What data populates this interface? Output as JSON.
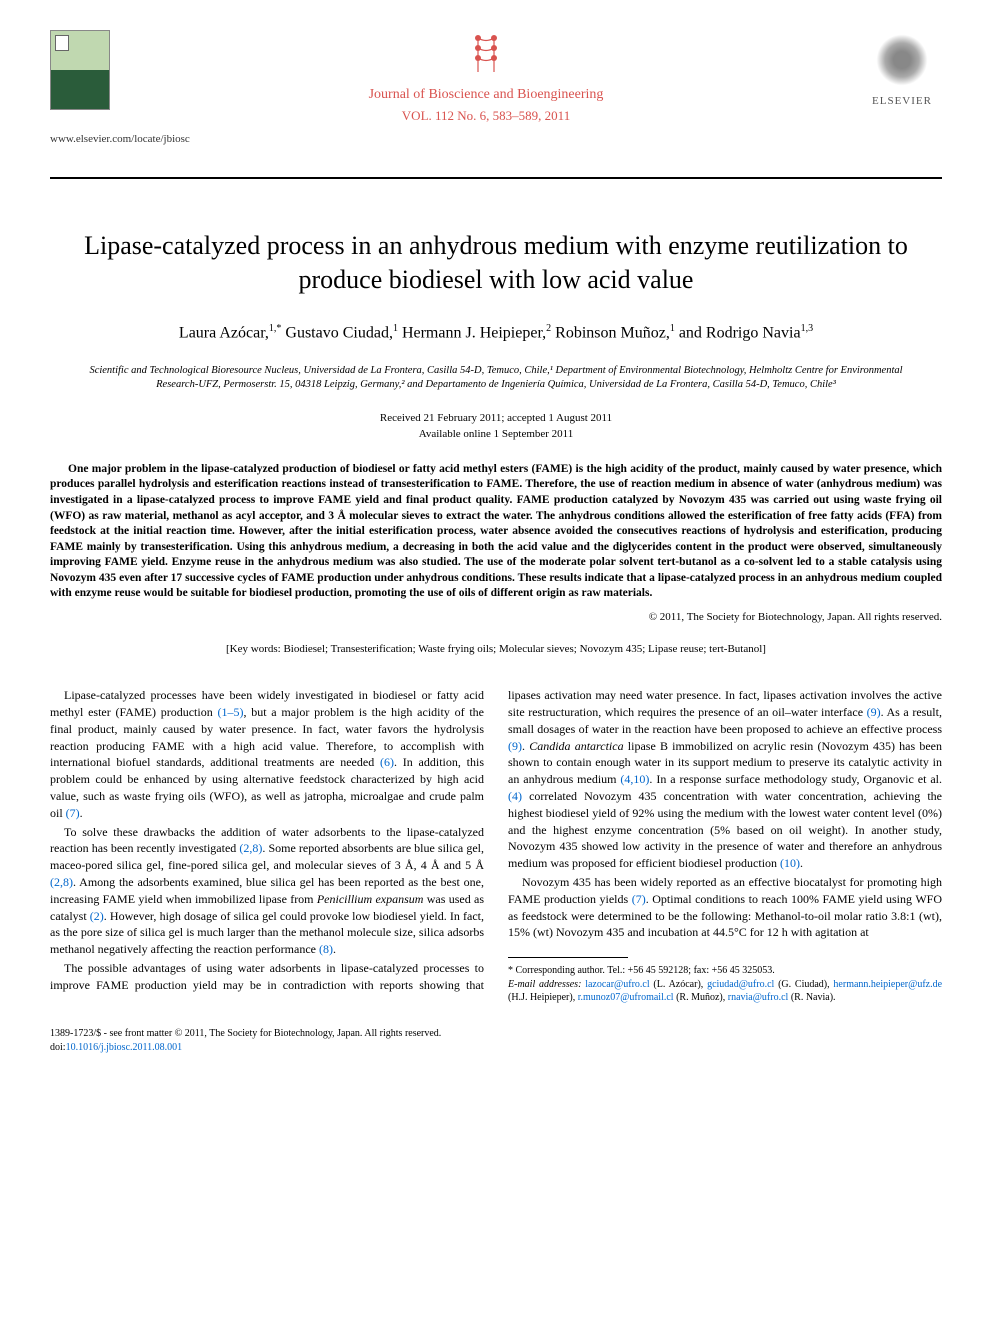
{
  "header": {
    "locate_url": "www.elsevier.com/locate/jbiosc",
    "journal_name": "Journal of Bioscience and Bioengineering",
    "volume_line": "VOL. 112 No. 6, 583–589, 2011",
    "publisher": "ELSEVIER"
  },
  "title": "Lipase-catalyzed process in an anhydrous medium with enzyme reutilization to produce biodiesel with low acid value",
  "authors_html": "Laura Azócar,<sup>1,*</sup> Gustavo Ciudad,<sup>1</sup> Hermann J. Heipieper,<sup>2</sup> Robinson Muñoz,<sup>1</sup> and Rodrigo Navia<sup>1,3</sup>",
  "affiliations": "Scientific and Technological Bioresource Nucleus, Universidad de La Frontera, Casilla 54-D, Temuco, Chile,¹ Department of Environmental Biotechnology, Helmholtz Centre for Environmental Research-UFZ, Permoserstr. 15, 04318 Leipzig, Germany,² and Departamento de Ingeniería Química, Universidad de La Frontera, Casilla 54-D, Temuco, Chile³",
  "dates": {
    "received": "Received 21 February 2011; accepted 1 August 2011",
    "online": "Available online 1 September 2011"
  },
  "abstract": "One major problem in the lipase-catalyzed production of biodiesel or fatty acid methyl esters (FAME) is the high acidity of the product, mainly caused by water presence, which produces parallel hydrolysis and esterification reactions instead of transesterification to FAME. Therefore, the use of reaction medium in absence of water (anhydrous medium) was investigated in a lipase-catalyzed process to improve FAME yield and final product quality. FAME production catalyzed by Novozym 435 was carried out using waste frying oil (WFO) as raw material, methanol as acyl acceptor, and 3 Å molecular sieves to extract the water. The anhydrous conditions allowed the esterification of free fatty acids (FFA) from feedstock at the initial reaction time. However, after the initial esterification process, water absence avoided the consecutives reactions of hydrolysis and esterification, producing FAME mainly by transesterification. Using this anhydrous medium, a decreasing in both the acid value and the diglycerides content in the product were observed, simultaneously improving FAME yield. Enzyme reuse in the anhydrous medium was also studied. The use of the moderate polar solvent tert-butanol as a co-solvent led to a stable catalysis using Novozym 435 even after 17 successive cycles of FAME production under anhydrous conditions. These results indicate that a lipase-catalyzed process in an anhydrous medium coupled with enzyme reuse would be suitable for biodiesel production, promoting the use of oils of different origin as raw materials.",
  "copyright": "© 2011, The Society for Biotechnology, Japan. All rights reserved.",
  "keywords": "[Key words: Biodiesel; Transesterification; Waste frying oils; Molecular sieves; Novozym 435; Lipase reuse; tert-Butanol]",
  "body": {
    "p1_a": "Lipase-catalyzed processes have been widely investigated in biodiesel or fatty acid methyl ester (FAME) production ",
    "p1_ref1": "(1–5)",
    "p1_b": ", but a major problem is the high acidity of the final product, mainly caused by water presence. In fact, water favors the hydrolysis reaction producing FAME with a high acid value. Therefore, to accomplish with international biofuel standards, additional treatments are needed ",
    "p1_ref2": "(6)",
    "p1_c": ". In addition, this problem could be enhanced by using alternative feedstock characterized by high acid value, such as waste frying oils (WFO), as well as jatropha, microalgae and crude palm oil ",
    "p1_ref3": "(7)",
    "p1_d": ".",
    "p2_a": "To solve these drawbacks the addition of water adsorbents to the lipase-catalyzed reaction has been recently investigated ",
    "p2_ref1": "(2,8)",
    "p2_b": ". Some reported absorbents are blue silica gel, maceo-pored silica gel, fine-pored silica gel, and molecular sieves of 3 Å, 4 Å and 5 Å ",
    "p2_ref2": "(2,8)",
    "p2_c": ". Among the adsorbents examined, blue silica gel has been reported as the best one, increasing FAME yield when immobilized lipase from ",
    "p2_species": "Penicillium expansum",
    "p2_d": " was used as catalyst ",
    "p2_ref3": "(2)",
    "p2_e": ". However, high dosage of silica gel could provoke low biodiesel yield. In fact, as the pore size of silica gel is much larger than the methanol molecule size, silica adsorbs methanol negatively affecting the reaction performance ",
    "p2_ref4": "(8)",
    "p2_f": ".",
    "p3_a": "The possible advantages of using water adsorbents in lipase-catalyzed processes to improve FAME production yield may be in contradiction with reports showing that lipases activation may need water presence. In fact, lipases activation involves the active site restructuration, which requires the presence of an oil–water interface ",
    "p3_ref1": "(9)",
    "p3_b": ". As a result, small dosages of water in the reaction have been proposed to achieve an effective process ",
    "p3_ref2": "(9)",
    "p3_c": ". ",
    "p3_species": "Candida antarctica",
    "p3_d": " lipase B immobilized on acrylic resin (Novozym 435) has been shown to contain enough water in its support medium to preserve its catalytic activity in an anhydrous medium ",
    "p3_ref3": "(4,10)",
    "p3_e": ". In a response surface methodology study, Organovic et al. ",
    "p3_ref4": "(4)",
    "p3_f": " correlated Novozym 435 concentration with water concentration, achieving the highest biodiesel yield of 92% using the medium with the lowest water content level (0%) and the highest enzyme concentration (5% based on oil weight). In another study, Novozym 435 showed low activity in the presence of water and therefore an anhydrous medium was proposed for efficient biodiesel production ",
    "p3_ref5": "(10)",
    "p3_g": ".",
    "p4_a": "Novozym 435 has been widely reported as an effective biocatalyst for promoting high FAME production yields ",
    "p4_ref1": "(7)",
    "p4_b": ". Optimal conditions to reach 100% FAME yield using WFO as feedstock were determined to be the following: Methanol-to-oil molar ratio 3.8:1 (wt), 15% (wt) Novozym 435 and incubation at 44.5°C for 12 h with agitation at"
  },
  "footnotes": {
    "corr": "* Corresponding author. Tel.: +56 45 592128; fax: +56 45 325053.",
    "email_label": "E-mail addresses:",
    "emails": [
      {
        "addr": "lazocar@ufro.cl",
        "who": "(L. Azócar)"
      },
      {
        "addr": "gciudad@ufro.cl",
        "who": "(G. Ciudad)"
      },
      {
        "addr": "hermann.heipieper@ufz.de",
        "who": "(H.J. Heipieper)"
      },
      {
        "addr": "r.munoz07@ufromail.cl",
        "who": "(R. Muñoz)"
      },
      {
        "addr": "rnavia@ufro.cl",
        "who": "(R. Navia)"
      }
    ]
  },
  "bottom": {
    "issn": "1389-1723/$ - see front matter © 2011, The Society for Biotechnology, Japan. All rights reserved.",
    "doi_label": "doi:",
    "doi": "10.1016/j.jbiosc.2011.08.001"
  },
  "colors": {
    "journal_red": "#d9534f",
    "link_blue": "#0066cc"
  }
}
